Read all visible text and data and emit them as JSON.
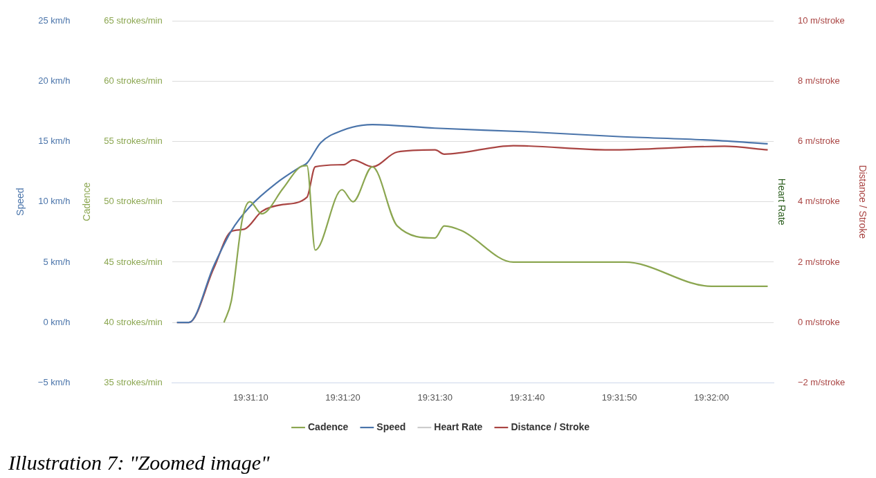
{
  "chart_data": {
    "type": "line",
    "ylabel": "Speed",
    "y2label": "Distance / Stroke",
    "y3label": "Cadence",
    "annotations": [
      "Heart Rate",
      "Illustration 7: \"Zoomed image\""
    ],
    "xlim": [
      19.517075,
      19.535208
    ],
    "xticks": [
      {
        "value": 19.519444,
        "label": "19:31:10"
      },
      {
        "value": 19.522222,
        "label": "19:31:20"
      },
      {
        "value": 19.525,
        "label": "19:31:30"
      },
      {
        "value": 19.527778,
        "label": "19:31:40"
      },
      {
        "value": 19.530556,
        "label": "19:31:50"
      },
      {
        "value": 19.533333,
        "label": "19:32:00"
      }
    ],
    "ylim": [
      -5,
      25
    ],
    "yticks": [
      {
        "value": -5,
        "label": "−5 km/h"
      },
      {
        "value": 0,
        "label": "0 km/h"
      },
      {
        "value": 5,
        "label": "5 km/h"
      },
      {
        "value": 10,
        "label": "10 km/h"
      },
      {
        "value": 15,
        "label": "15 km/h"
      },
      {
        "value": 20,
        "label": "20 km/h"
      },
      {
        "value": 25,
        "label": "25 km/h"
      }
    ],
    "y3lim": [
      35,
      65
    ],
    "y3ticks": [
      {
        "value": 35,
        "label": "35 strokes/min"
      },
      {
        "value": 40,
        "label": "40 strokes/min"
      },
      {
        "value": 45,
        "label": "45 strokes/min"
      },
      {
        "value": 50,
        "label": "50 strokes/min"
      },
      {
        "value": 55,
        "label": "55 strokes/min"
      },
      {
        "value": 60,
        "label": "60 strokes/min"
      },
      {
        "value": 65,
        "label": "65 strokes/min"
      }
    ],
    "y2lim": [
      -2,
      10
    ],
    "y2ticks": [
      {
        "value": -2,
        "label": "−2 m/stroke"
      },
      {
        "value": 0,
        "label": "0 m/stroke"
      },
      {
        "value": 2,
        "label": "2 m/stroke"
      },
      {
        "value": 4,
        "label": "4 m/stroke"
      },
      {
        "value": 6,
        "label": "6 m/stroke"
      },
      {
        "value": 8,
        "label": "8 m/stroke"
      },
      {
        "value": 10,
        "label": "10 m/stroke"
      }
    ],
    "grid": "y",
    "legend": "bottom",
    "marker": "none",
    "line_style": "solid",
    "series": [
      {
        "name": "Cadence",
        "color": "#8ba650",
        "axis": "y3",
        "x": [
          19.518639,
          19.518861,
          19.519194,
          19.519417,
          19.519778,
          19.520417,
          19.520944,
          19.521139,
          19.521389,
          19.522194,
          19.522528,
          19.523111,
          19.523861,
          19.525,
          19.525278,
          19.525806,
          19.527361,
          19.530722,
          19.533333,
          19.535028
        ],
        "values": [
          40,
          41.8,
          48.6,
          50,
          49,
          51.1,
          52.9,
          53,
          46,
          51,
          50,
          52.9,
          48,
          47,
          48,
          47.6,
          45,
          45,
          43,
          43
        ]
      },
      {
        "name": "Speed",
        "color": "#4a74aa",
        "axis": "y",
        "x": [
          19.517222,
          19.517583,
          19.518333,
          19.518861,
          19.519417,
          19.520194,
          19.520944,
          19.521139,
          19.521556,
          19.522194,
          19.523111,
          19.525,
          19.527778,
          19.530556,
          19.533333,
          19.535028
        ],
        "values": [
          0,
          0,
          4.7,
          7.6,
          9.6,
          11.5,
          12.9,
          13.2,
          14.9,
          15.9,
          16.4,
          16.1,
          15.8,
          15.4,
          15.1,
          14.8
        ]
      },
      {
        "name": "Heart Rate",
        "color": "#cccccc"
      },
      {
        "name": "Distance / Stroke",
        "color": "#a94442",
        "axis": "y2",
        "x": [
          19.517222,
          19.517583,
          19.518333,
          19.518861,
          19.51925,
          19.519778,
          19.520417,
          19.521139,
          19.521389,
          19.52225,
          19.522528,
          19.523111,
          19.523861,
          19.525,
          19.525278,
          19.527361,
          19.53025,
          19.533722,
          19.535028
        ],
        "values": [
          0,
          0,
          1.8,
          3.02,
          3.09,
          3.68,
          3.91,
          4.15,
          5.16,
          5.23,
          5.39,
          5.16,
          5.65,
          5.72,
          5.58,
          5.86,
          5.72,
          5.84,
          5.72
        ]
      }
    ]
  }
}
